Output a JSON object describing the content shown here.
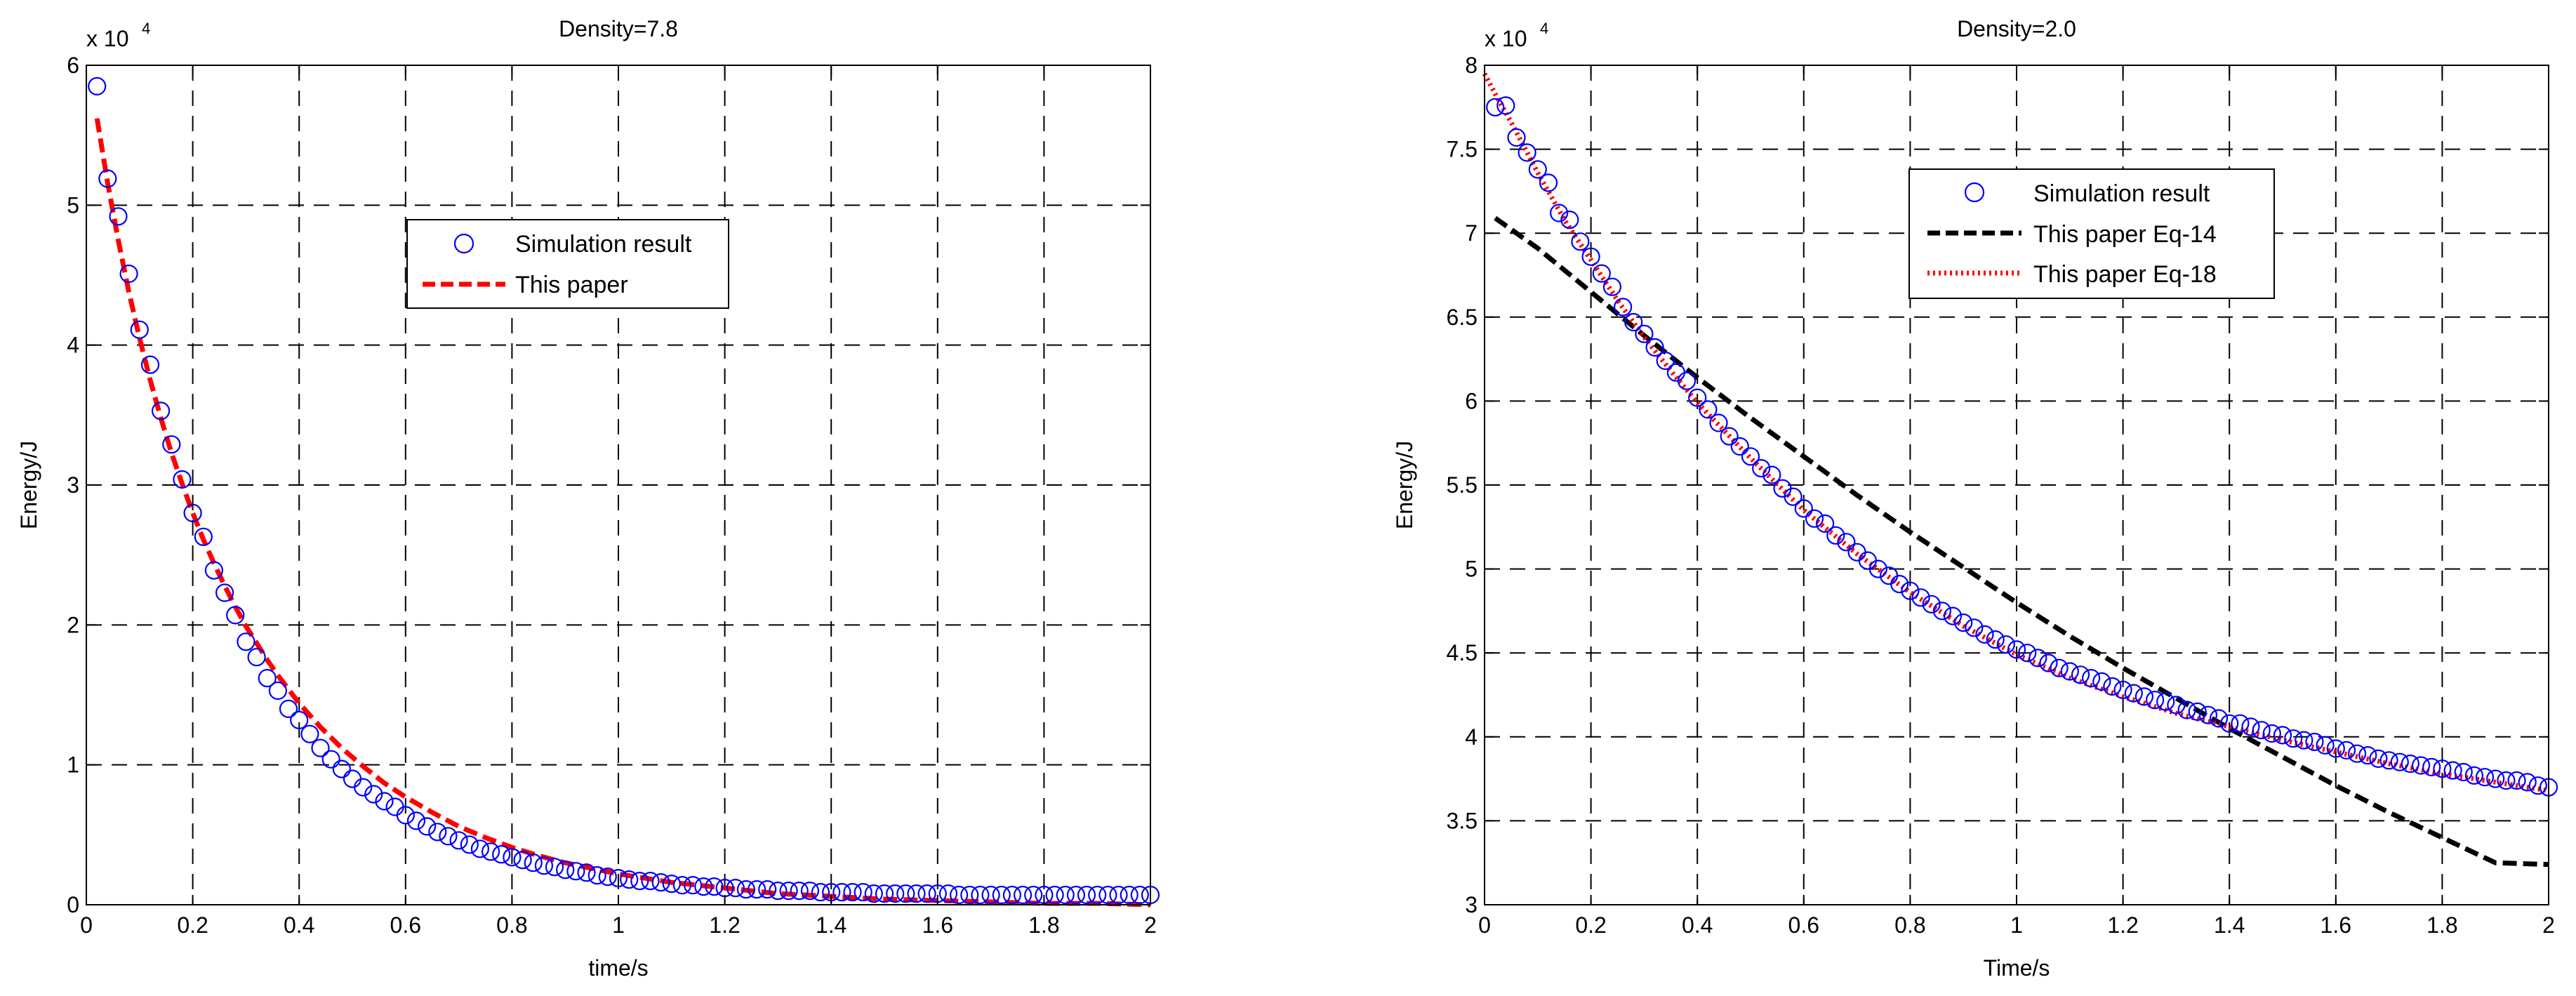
{
  "chart_data": [
    {
      "type": "scatter",
      "title": "Density=7.8",
      "xlabel": "time/s",
      "ylabel": "Energy/J",
      "exponent_label": "x 10",
      "exponent_power": "4",
      "xlim": [
        0,
        2
      ],
      "ylim": [
        0,
        6
      ],
      "xticks": [
        0,
        0.2,
        0.4,
        0.6,
        0.8,
        1,
        1.2,
        1.4,
        1.6,
        1.8,
        2
      ],
      "xtick_labels": [
        "0",
        "0.2",
        "0.4",
        "0.6",
        "0.8",
        "1",
        "1.2",
        "1.4",
        "1.6",
        "1.8",
        "2"
      ],
      "yticks": [
        0,
        1,
        2,
        3,
        4,
        5,
        6
      ],
      "ytick_labels": [
        "0",
        "1",
        "2",
        "3",
        "4",
        "5",
        "6"
      ],
      "grid": true,
      "legend_position": "upper-center",
      "series": [
        {
          "name": "Simulation result",
          "style": "marker-circle",
          "color": "#0000ff",
          "x": [
            0.02,
            0.04,
            0.06,
            0.08,
            0.1,
            0.12,
            0.14,
            0.16,
            0.18,
            0.2,
            0.22,
            0.24,
            0.26,
            0.28,
            0.3,
            0.32,
            0.34,
            0.36,
            0.38,
            0.4,
            0.42,
            0.44,
            0.46,
            0.48,
            0.5,
            0.52,
            0.54,
            0.56,
            0.58,
            0.6,
            0.62,
            0.64,
            0.66,
            0.68,
            0.7,
            0.72,
            0.74,
            0.76,
            0.78,
            0.8,
            0.82,
            0.84,
            0.86,
            0.88,
            0.9,
            0.92,
            0.94,
            0.96,
            0.98,
            1.0,
            1.02,
            1.04,
            1.06,
            1.08,
            1.1,
            1.12,
            1.14,
            1.16,
            1.18,
            1.2,
            1.22,
            1.24,
            1.26,
            1.28,
            1.3,
            1.32,
            1.34,
            1.36,
            1.38,
            1.4,
            1.42,
            1.44,
            1.46,
            1.48,
            1.5,
            1.52,
            1.54,
            1.56,
            1.58,
            1.6,
            1.62,
            1.64,
            1.66,
            1.68,
            1.7,
            1.72,
            1.74,
            1.76,
            1.78,
            1.8,
            1.82,
            1.84,
            1.86,
            1.88,
            1.9,
            1.92,
            1.94,
            1.96,
            1.98,
            2.0
          ],
          "y": [
            5.85,
            5.19,
            4.92,
            4.51,
            4.11,
            3.86,
            3.53,
            3.29,
            3.04,
            2.8,
            2.63,
            2.39,
            2.23,
            2.07,
            1.88,
            1.77,
            1.62,
            1.53,
            1.4,
            1.32,
            1.22,
            1.12,
            1.04,
            0.97,
            0.9,
            0.84,
            0.79,
            0.74,
            0.7,
            0.64,
            0.6,
            0.56,
            0.52,
            0.49,
            0.46,
            0.43,
            0.4,
            0.38,
            0.36,
            0.34,
            0.32,
            0.3,
            0.28,
            0.27,
            0.25,
            0.24,
            0.23,
            0.21,
            0.2,
            0.19,
            0.18,
            0.17,
            0.17,
            0.16,
            0.15,
            0.14,
            0.14,
            0.13,
            0.13,
            0.12,
            0.12,
            0.11,
            0.11,
            0.11,
            0.1,
            0.1,
            0.1,
            0.1,
            0.09,
            0.09,
            0.09,
            0.09,
            0.09,
            0.08,
            0.08,
            0.08,
            0.08,
            0.08,
            0.08,
            0.08,
            0.08,
            0.07,
            0.07,
            0.07,
            0.07,
            0.07,
            0.07,
            0.07,
            0.07,
            0.07,
            0.07,
            0.07,
            0.07,
            0.07,
            0.07,
            0.07,
            0.07,
            0.07,
            0.07,
            0.07
          ]
        },
        {
          "name": "This paper",
          "style": "dashed",
          "color": "#ff0000",
          "x": [
            0.02,
            0.04,
            0.06,
            0.08,
            0.1,
            0.12,
            0.14,
            0.16,
            0.18,
            0.2,
            0.22,
            0.24,
            0.26,
            0.28,
            0.3,
            0.32,
            0.34,
            0.36,
            0.38,
            0.4,
            0.44,
            0.48,
            0.52,
            0.56,
            0.6,
            0.65,
            0.7,
            0.75,
            0.8,
            0.85,
            0.9,
            0.95,
            1.0,
            1.05,
            1.1,
            1.15,
            1.2,
            1.25,
            1.3,
            1.35,
            1.4,
            1.45,
            1.5,
            1.6,
            1.7,
            1.8,
            1.9,
            2.0
          ],
          "y": [
            5.62,
            5.16,
            4.75,
            4.38,
            4.05,
            3.75,
            3.48,
            3.23,
            3.01,
            2.8,
            2.61,
            2.44,
            2.28,
            2.13,
            1.99,
            1.87,
            1.75,
            1.64,
            1.54,
            1.44,
            1.27,
            1.12,
            0.99,
            0.87,
            0.77,
            0.66,
            0.56,
            0.48,
            0.41,
            0.35,
            0.3,
            0.26,
            0.22,
            0.19,
            0.16,
            0.14,
            0.12,
            0.1,
            0.08,
            0.07,
            0.06,
            0.05,
            0.04,
            0.03,
            0.02,
            0.01,
            0.01,
            0.0
          ]
        }
      ]
    },
    {
      "type": "scatter",
      "title": "Density=2.0",
      "xlabel": "Time/s",
      "ylabel": "Energy/J",
      "exponent_label": "x 10",
      "exponent_power": "4",
      "xlim": [
        0,
        2
      ],
      "ylim": [
        3,
        8
      ],
      "xticks": [
        0,
        0.2,
        0.4,
        0.6,
        0.8,
        1,
        1.2,
        1.4,
        1.6,
        1.8,
        2
      ],
      "xtick_labels": [
        "0",
        "0.2",
        "0.4",
        "0.6",
        "0.8",
        "1",
        "1.2",
        "1.4",
        "1.6",
        "1.8",
        "2"
      ],
      "yticks": [
        3,
        3.5,
        4,
        4.5,
        5,
        5.5,
        6,
        6.5,
        7,
        7.5,
        8
      ],
      "ytick_labels": [
        "3",
        "3.5",
        "4",
        "4.5",
        "5",
        "5.5",
        "6",
        "6.5",
        "7",
        "7.5",
        "8"
      ],
      "grid": true,
      "legend_position": "upper-center",
      "series": [
        {
          "name": "Simulation result",
          "style": "marker-circle",
          "color": "#0000ff",
          "x": [
            0.02,
            0.04,
            0.06,
            0.08,
            0.1,
            0.12,
            0.14,
            0.16,
            0.18,
            0.2,
            0.22,
            0.24,
            0.26,
            0.28,
            0.3,
            0.32,
            0.34,
            0.36,
            0.38,
            0.4,
            0.42,
            0.44,
            0.46,
            0.48,
            0.5,
            0.52,
            0.54,
            0.56,
            0.58,
            0.6,
            0.62,
            0.64,
            0.66,
            0.68,
            0.7,
            0.72,
            0.74,
            0.76,
            0.78,
            0.8,
            0.82,
            0.84,
            0.86,
            0.88,
            0.9,
            0.92,
            0.94,
            0.96,
            0.98,
            1.0,
            1.02,
            1.04,
            1.06,
            1.08,
            1.1,
            1.12,
            1.14,
            1.16,
            1.18,
            1.2,
            1.22,
            1.24,
            1.26,
            1.28,
            1.3,
            1.32,
            1.34,
            1.36,
            1.38,
            1.4,
            1.42,
            1.44,
            1.46,
            1.48,
            1.5,
            1.52,
            1.54,
            1.56,
            1.58,
            1.6,
            1.62,
            1.64,
            1.66,
            1.68,
            1.7,
            1.72,
            1.74,
            1.76,
            1.78,
            1.8,
            1.82,
            1.84,
            1.86,
            1.88,
            1.9,
            1.92,
            1.94,
            1.96,
            1.98,
            2.0
          ],
          "y": [
            7.75,
            7.76,
            7.57,
            7.48,
            7.38,
            7.3,
            7.12,
            7.08,
            6.95,
            6.86,
            6.76,
            6.68,
            6.56,
            6.47,
            6.4,
            6.32,
            6.24,
            6.17,
            6.12,
            6.02,
            5.95,
            5.87,
            5.79,
            5.73,
            5.67,
            5.6,
            5.56,
            5.48,
            5.43,
            5.36,
            5.3,
            5.27,
            5.2,
            5.16,
            5.1,
            5.05,
            5.0,
            4.96,
            4.91,
            4.87,
            4.83,
            4.79,
            4.75,
            4.72,
            4.68,
            4.65,
            4.61,
            4.58,
            4.55,
            4.52,
            4.5,
            4.47,
            4.44,
            4.41,
            4.39,
            4.37,
            4.35,
            4.33,
            4.3,
            4.28,
            4.26,
            4.24,
            4.22,
            4.21,
            4.19,
            4.16,
            4.15,
            4.13,
            4.11,
            4.08,
            4.08,
            4.06,
            4.04,
            4.02,
            4.01,
            3.99,
            3.98,
            3.97,
            3.95,
            3.93,
            3.92,
            3.9,
            3.89,
            3.87,
            3.86,
            3.85,
            3.84,
            3.83,
            3.82,
            3.81,
            3.8,
            3.79,
            3.77,
            3.76,
            3.75,
            3.74,
            3.74,
            3.73,
            3.71,
            3.7
          ]
        },
        {
          "name": "This paper Eq-14",
          "style": "dashed",
          "color": "#000000",
          "x": [
            0.02,
            0.1,
            0.2,
            0.3,
            0.4,
            0.5,
            0.6,
            0.7,
            0.8,
            0.9,
            1.0,
            1.1,
            1.2,
            1.3,
            1.4,
            1.5,
            1.6,
            1.7,
            1.8,
            1.9,
            2.0
          ],
          "y": [
            7.09,
            6.91,
            6.65,
            6.39,
            6.14,
            5.9,
            5.67,
            5.44,
            5.22,
            5.01,
            4.8,
            4.6,
            4.41,
            4.23,
            4.05,
            3.88,
            3.71,
            3.55,
            3.4,
            3.25,
            3.24
          ]
        },
        {
          "name": "This paper Eq-18",
          "style": "dotted",
          "color": "#ff0000",
          "x": [
            0.0,
            0.02,
            0.05,
            0.1,
            0.15,
            0.2,
            0.25,
            0.3,
            0.35,
            0.4,
            0.5,
            0.6,
            0.7,
            0.8,
            0.9,
            1.0,
            1.1,
            1.2,
            1.3,
            1.4,
            1.5,
            1.6,
            1.7,
            1.8,
            1.9,
            2.0
          ],
          "y": [
            7.95,
            7.83,
            7.66,
            7.36,
            7.08,
            6.84,
            6.6,
            6.38,
            6.18,
            5.99,
            5.66,
            5.35,
            5.09,
            4.86,
            4.66,
            4.49,
            4.35,
            4.24,
            4.14,
            4.06,
            3.98,
            3.91,
            3.84,
            3.78,
            3.73,
            3.68
          ]
        }
      ]
    }
  ]
}
